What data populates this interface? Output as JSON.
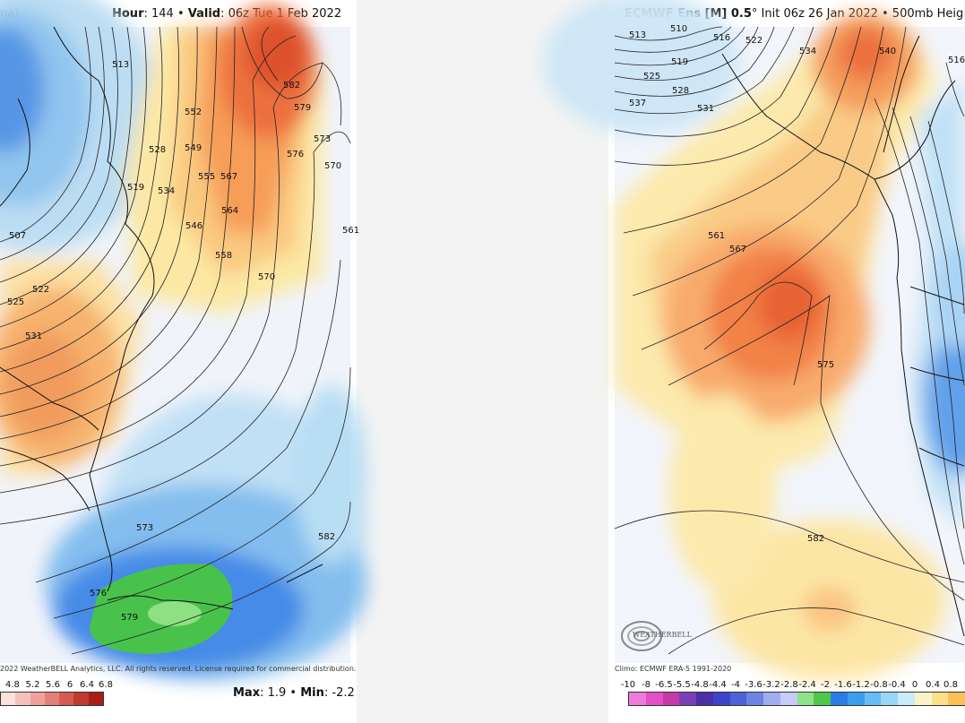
{
  "left_panel": {
    "header_prefix": "na)",
    "hour_label": "Hour",
    "hour_value": ": 144 •",
    "valid_label": "Valid",
    "valid_value": ": 06z Tue 1 Feb 2022",
    "copyright": "2022 WeatherBELL Analytics, LLC. All rights reserved. License required for commercial distribution.",
    "scale_ticks": [
      "4.8",
      "5.2",
      "5.6",
      "6",
      "6.4",
      "6.8"
    ],
    "scale_colors": [
      "#fbe0dc",
      "#f5c2bb",
      "#eda39b",
      "#e38178",
      "#d45c52",
      "#c03a2e",
      "#a91f18"
    ],
    "max_label": "Max",
    "max_value": ": 1.9 •",
    "min_label": "Min",
    "min_value": ": -2.2",
    "contour_labels": [
      "582",
      "579",
      "576",
      "573",
      "570",
      "567",
      "564",
      "561",
      "558",
      "555",
      "552",
      "549",
      "546",
      "534",
      "528",
      "519",
      "522",
      "525",
      "531",
      "507",
      "513",
      "570",
      "573",
      "576",
      "579",
      "582"
    ]
  },
  "right_panel": {
    "title_bold": "ECMWF Ens [M] 0.5",
    "title_rest": "° Init 06z 26 Jan 2022 • 500mb Heig",
    "climo": "Climo: ECMWF ERA-5 1991-2020",
    "logo_text": "WEATHERBELL",
    "scale_ticks": [
      "-10",
      "-8",
      "-6.5",
      "-5.5",
      "-4.8",
      "-4.4",
      "-4",
      "-3.6",
      "-3.2",
      "-2.8",
      "-2.4",
      "-2",
      "-1.6",
      "-1.2",
      "-0.8",
      "-0.4",
      "0",
      "0.4",
      "0.8"
    ],
    "scale_colors": [
      "#f07ad8",
      "#e44fc6",
      "#c63aa8",
      "#7b3fb5",
      "#4a2fa8",
      "#3d44c7",
      "#4b62d9",
      "#6f84e0",
      "#a0aef0",
      "#c4ccf7",
      "#8ee38a",
      "#4fc84a",
      "#2a7de6",
      "#3b9df0",
      "#66bcf5",
      "#9ad6f8",
      "#cbeafa",
      "#fbf3c8",
      "#fde08a",
      "#fbc059"
    ],
    "contour_labels": [
      "513",
      "510",
      "516",
      "522",
      "534",
      "540",
      "519",
      "525",
      "528",
      "531",
      "537",
      "516",
      "561",
      "567",
      "575",
      "582"
    ]
  }
}
